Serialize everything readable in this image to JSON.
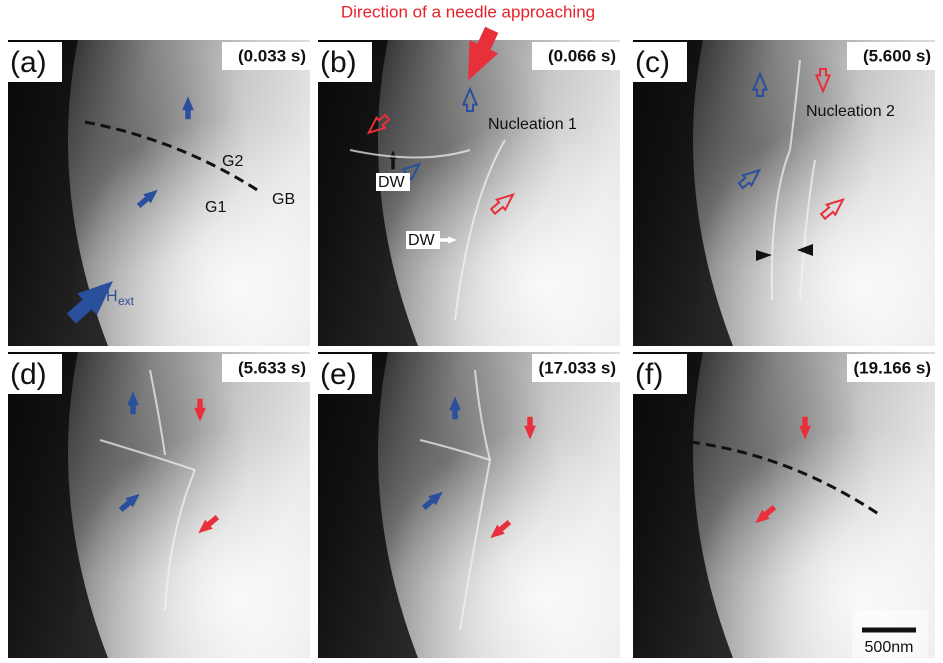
{
  "header": {
    "caption": "Direction of a needle approaching"
  },
  "panels": [
    {
      "label": "(a)",
      "time": "(0.033 s)",
      "annotations": [
        "G2",
        "G1",
        "GB"
      ],
      "field": {
        "symbol": "H",
        "subscript": "ext"
      }
    },
    {
      "label": "(b)",
      "time": "(0.066 s)",
      "annotations": [
        "Nucleation 1",
        "DW",
        "DW"
      ]
    },
    {
      "label": "(c)",
      "time": "(5.600 s)",
      "annotations": [
        "Nucleation 2"
      ]
    },
    {
      "label": "(d)",
      "time": "(5.633 s)"
    },
    {
      "label": "(e)",
      "time": "(17.033 s)"
    },
    {
      "label": "(f)",
      "time": "(19.166 s)",
      "scale_bar": "500nm"
    }
  ]
}
